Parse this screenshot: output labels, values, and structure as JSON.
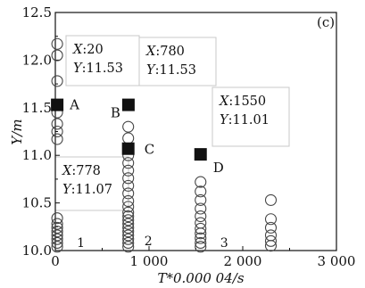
{
  "chart_data": {
    "type": "scatter",
    "title": "",
    "panel_label": "(c)",
    "xlabel": "T*0.000 04/s",
    "ylabel": "Y/m",
    "xlim": [
      0,
      3000
    ],
    "ylim": [
      10.0,
      12.5
    ],
    "x_ticks": [
      {
        "value": 0,
        "label": "0"
      },
      {
        "value": 1000,
        "label": "1 000"
      },
      {
        "value": 2000,
        "label": "2 000"
      },
      {
        "value": 3000,
        "label": "3 000"
      }
    ],
    "y_ticks": [
      {
        "value": 10.0,
        "label": "10.0"
      },
      {
        "value": 10.5,
        "label": "10.5"
      },
      {
        "value": 11.0,
        "label": "11.0"
      },
      {
        "value": 11.5,
        "label": "11.5"
      },
      {
        "value": 12.0,
        "label": "12.0"
      },
      {
        "value": 12.5,
        "label": "12.5"
      }
    ],
    "grid": false,
    "circle_groups": [
      {
        "label": "1",
        "x": 20,
        "y": [
          10.04,
          10.08,
          10.12,
          10.16,
          10.2,
          10.24,
          10.28,
          10.34,
          11.17,
          11.25,
          11.33,
          11.45,
          11.78,
          12.05,
          12.17
        ]
      },
      {
        "label": "2",
        "x": 778,
        "y": [
          10.04,
          10.08,
          10.12,
          10.16,
          10.2,
          10.24,
          10.28,
          10.32,
          10.36,
          10.4,
          10.46,
          10.52,
          10.6,
          10.68,
          10.76,
          10.84,
          10.92,
          11.0,
          11.18,
          11.3
        ]
      },
      {
        "label": "3",
        "x": 1550,
        "y": [
          10.04,
          10.08,
          10.13,
          10.18,
          10.23,
          10.29,
          10.36,
          10.44,
          10.53,
          10.62,
          10.72
        ]
      },
      {
        "label": "",
        "x": 2300,
        "y": [
          10.05,
          10.1,
          10.16,
          10.24,
          10.33,
          10.53
        ]
      }
    ],
    "marked_points": [
      {
        "label": "A",
        "x": 20,
        "y": 11.53
      },
      {
        "label": "B",
        "x": 780,
        "y": 11.53
      },
      {
        "label": "C",
        "x": 778,
        "y": 11.07
      },
      {
        "label": "D",
        "x": 1550,
        "y": 11.01
      }
    ],
    "annotations": [
      {
        "target": "A",
        "lines": [
          {
            "var": "X",
            "value": ":20"
          },
          {
            "var": "Y",
            "value": ":11.53"
          }
        ]
      },
      {
        "target": "B",
        "lines": [
          {
            "var": "X",
            "value": ":780"
          },
          {
            "var": "Y",
            "value": ":11.53"
          }
        ]
      },
      {
        "target": "D",
        "lines": [
          {
            "var": "X",
            "value": ":1550"
          },
          {
            "var": "Y",
            "value": ":11.01"
          }
        ]
      },
      {
        "target": "C",
        "lines": [
          {
            "var": "X",
            "value": ":778"
          },
          {
            "var": "Y",
            "value": ":11.07"
          }
        ]
      }
    ],
    "marker_colors": {
      "circle": "#444444",
      "square": "#111111",
      "annotation_border": "#c8c8c8"
    }
  }
}
